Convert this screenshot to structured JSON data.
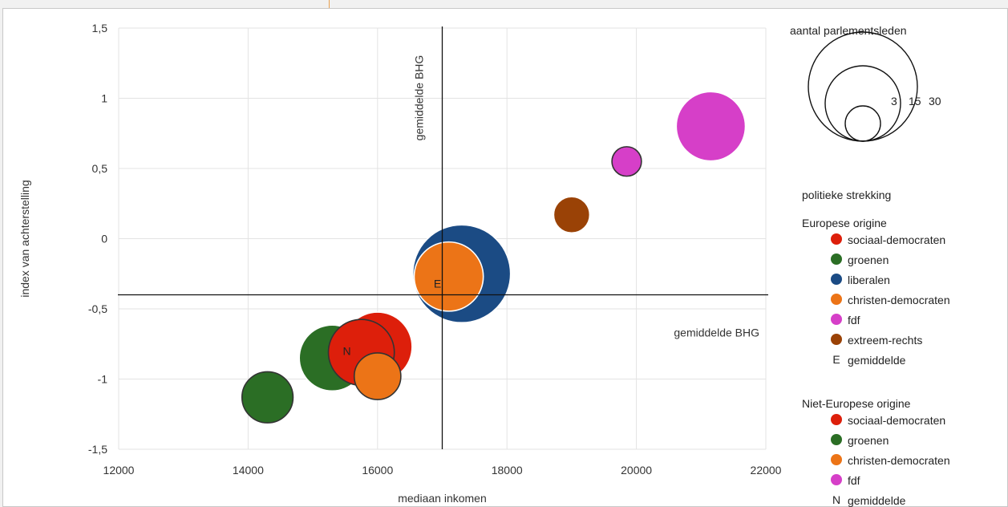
{
  "chart_data": {
    "type": "scatter",
    "xlabel": "mediaan inkomen",
    "ylabel": "index van achterstelling",
    "xlim": [
      12000,
      22000
    ],
    "ylim": [
      -1.5,
      1.5
    ],
    "xticks": [
      12000,
      14000,
      16000,
      18000,
      20000,
      22000
    ],
    "yticks": [
      1.5,
      1,
      0.5,
      0,
      -0.5,
      -1,
      -1.5
    ],
    "xtick_labels": [
      "12000",
      "14000",
      "16000",
      "18000",
      "20000",
      "22000"
    ],
    "ytick_labels": [
      "1,5",
      "1",
      "0,5",
      "0",
      "-0,5",
      "-1",
      "-1,5"
    ],
    "grid": true,
    "reference_lines": {
      "x": 17000,
      "y": -0.4,
      "x_label": "gemiddelde BHG",
      "y_label": "gemiddelde BHG"
    },
    "size_legend": {
      "title": "aantal parlementsleden",
      "values": [
        3,
        15,
        30
      ],
      "labels": [
        "3",
        "15",
        "30"
      ]
    },
    "color_legend": {
      "title": "politieke strekking",
      "groups": [
        {
          "name": "Europese origine",
          "items": [
            {
              "label": "sociaal-democraten",
              "color": "#dd1f0b",
              "marker": "dot"
            },
            {
              "label": "groenen",
              "color": "#2b6e25",
              "marker": "dot"
            },
            {
              "label": "liberalen",
              "color": "#1b4b84",
              "marker": "dot"
            },
            {
              "label": "christen-democraten",
              "color": "#ec7417",
              "marker": "dot"
            },
            {
              "label": "fdf",
              "color": "#d63fc8",
              "marker": "dot"
            },
            {
              "label": "extreem-rechts",
              "color": "#9a4206",
              "marker": "dot"
            },
            {
              "label": "gemiddelde",
              "letter": "E",
              "marker": "letter"
            }
          ]
        },
        {
          "name": "Niet-Europese origine",
          "items": [
            {
              "label": "sociaal-democraten",
              "color": "#dd1f0b",
              "marker": "dot"
            },
            {
              "label": "groenen",
              "color": "#2b6e25",
              "marker": "dot"
            },
            {
              "label": "christen-democraten",
              "color": "#ec7417",
              "marker": "dot"
            },
            {
              "label": "fdf",
              "color": "#d63fc8",
              "marker": "dot"
            },
            {
              "label": "gemiddelde",
              "letter": "N",
              "marker": "letter"
            }
          ]
        }
      ]
    },
    "series": [
      {
        "group": "Europese origine",
        "party": "liberalen",
        "x": 17300,
        "y": -0.25,
        "size": 22,
        "color": "#1b4b84",
        "outline": "#ffffff"
      },
      {
        "group": "Europese origine",
        "party": "christen-democraten",
        "x": 17100,
        "y": -0.27,
        "size": 11,
        "color": "#ec7417",
        "outline": "#ffffff"
      },
      {
        "group": "Europese origine",
        "party": "extreem-rechts",
        "x": 19000,
        "y": 0.17,
        "size": 3,
        "color": "#9a4206",
        "outline": "#ffffff"
      },
      {
        "group": "Europese origine",
        "party": "fdf",
        "x": 21150,
        "y": 0.8,
        "size": 11,
        "color": "#d63fc8",
        "outline": "#ffffff"
      },
      {
        "group": "Niet-Europese origine",
        "party": "fdf",
        "x": 19850,
        "y": 0.55,
        "size": 2,
        "color": "#d63fc8",
        "outline": "#333333"
      },
      {
        "group": "Europese origine",
        "party": "groenen",
        "x": 15300,
        "y": -0.85,
        "size": 10,
        "color": "#2b6e25",
        "outline": "#ffffff"
      },
      {
        "group": "Niet-Europese origine",
        "party": "groenen",
        "x": 14300,
        "y": -1.13,
        "size": 6,
        "color": "#2b6e25",
        "outline": "#333333"
      },
      {
        "group": "Europese origine",
        "party": "sociaal-democraten",
        "x": 16000,
        "y": -0.77,
        "size": 11,
        "color": "#dd1f0b",
        "outline": "#ffffff"
      },
      {
        "group": "Niet-Europese origine",
        "party": "sociaal-democraten",
        "x": 15750,
        "y": -0.81,
        "size": 10,
        "color": "#dd1f0b",
        "outline": "#333333"
      },
      {
        "group": "Niet-Europese origine",
        "party": "christen-democraten",
        "x": 16000,
        "y": -0.98,
        "size": 5,
        "color": "#ec7417",
        "outline": "#333333"
      }
    ],
    "averages": [
      {
        "letter": "E",
        "x": 17100,
        "y": -0.32
      },
      {
        "letter": "N",
        "x": 15700,
        "y": -0.8
      }
    ]
  }
}
